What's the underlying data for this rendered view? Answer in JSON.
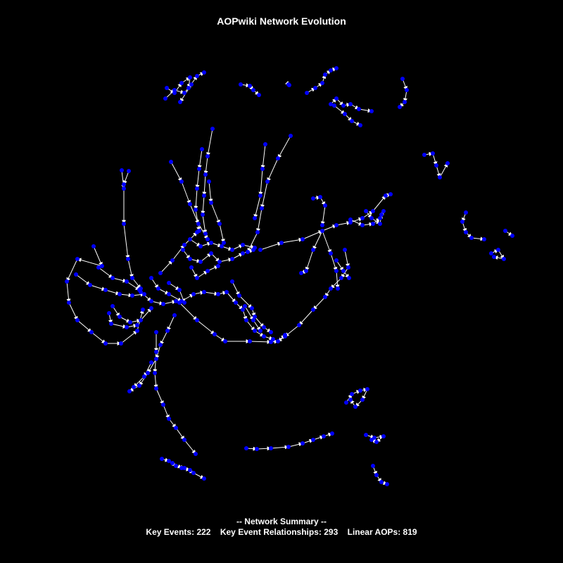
{
  "title": "AOPwiki Network Evolution",
  "summary": {
    "heading": "-- Network Summary --",
    "key_events_label": "Key Events:",
    "key_events_value": "222",
    "kers_label": "Key Event Relationships:",
    "kers_value": "293",
    "aops_label": "Linear AOPs:",
    "aops_value": "819"
  },
  "colors": {
    "background": "#000000",
    "node": "#0000ff",
    "edge": "#ffffff",
    "text": "#ffffff"
  }
}
